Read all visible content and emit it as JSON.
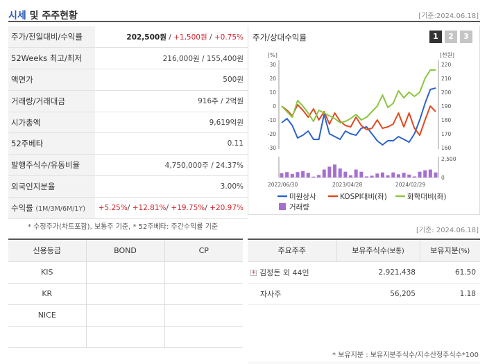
{
  "header": {
    "title_accent": "시세",
    "title_rest": " 및 주주현황",
    "ref_date": "[기준:2024.06.18]"
  },
  "info": {
    "price": {
      "label": "주가/전일대비/수익률",
      "value": "202,500원",
      "change": "+1,500원",
      "rate": "+0.75%"
    },
    "week52": {
      "label": "52Weeks 최고/최저",
      "value": "216,000원 / 155,400원"
    },
    "par": {
      "label": "액면가",
      "value": "500원"
    },
    "volume": {
      "label": "거래량/거래대금",
      "value": "916주 / 2억원"
    },
    "mcap": {
      "label": "시가총액",
      "value": "9,619억원"
    },
    "beta": {
      "label": "52주베타",
      "value": "0.11"
    },
    "shares": {
      "label": "발행주식수/유동비율",
      "value": "4,750,000주 / 24.37%"
    },
    "foreign": {
      "label": "외국인지분율",
      "value": "3.00%"
    },
    "returns": {
      "label": "수익률",
      "label_sub": "(1M/3M/6M/1Y)",
      "r1": "+5.25%",
      "r2": "+12.81%",
      "r3": "+19.75%",
      "r4": "+20.97%"
    }
  },
  "chart_panel": {
    "title": "주가/상대수익률",
    "pages": [
      "1",
      "2",
      "3"
    ]
  },
  "chart_data": {
    "type": "line",
    "left_unit": "[%]",
    "right_unit": "[천원]",
    "y_left_ticks": [
      "30",
      "20",
      "10",
      "0",
      "-10",
      "-20",
      "-30"
    ],
    "y_right_ticks": [
      "220",
      "210",
      "200",
      "190",
      "180",
      "170",
      "160"
    ],
    "vol_ticks": [
      "2,500",
      "0"
    ],
    "x_tick_labels": [
      "2022/06/30",
      "2023/04/28",
      "2024/02/29"
    ],
    "ylim_left": [
      -30,
      30
    ],
    "ylim_right": [
      160,
      220
    ],
    "series": [
      {
        "name": "미원상사",
        "color": "#2b63c9",
        "values": [
          -12,
          -9,
          -14,
          -23,
          -21,
          -18,
          -24,
          -24,
          -6,
          -20,
          -22,
          -24,
          -18,
          -20,
          -21,
          -16,
          -15,
          -20,
          -25,
          -28,
          -25,
          -25,
          -22,
          -24,
          -26,
          -20,
          -10,
          2,
          12,
          13
        ]
      },
      {
        "name": "KOSPI대비(좌)",
        "color": "#e0491f",
        "values": [
          0,
          -3,
          -7,
          1,
          -3,
          -8,
          -2,
          -10,
          -4,
          -13,
          -5,
          -11,
          -14,
          -15,
          -8,
          -14,
          -17,
          -16,
          -10,
          -16,
          -15,
          -13,
          -5,
          -15,
          -5,
          -16,
          -21,
          -10,
          0,
          -4
        ]
      },
      {
        "name": "화학대비(좌)",
        "color": "#8bc53f",
        "values": [
          0,
          -4,
          -8,
          4,
          0,
          -5,
          -11,
          -3,
          -5,
          -7,
          -9,
          -12,
          -11,
          -9,
          -6,
          -10,
          -8,
          -4,
          0,
          8,
          -1,
          2,
          11,
          6,
          10,
          7,
          10,
          20,
          26,
          26
        ]
      }
    ],
    "volume": {
      "name": "거래량",
      "color": "#a56fd0",
      "max": 2500,
      "values": [
        600,
        750,
        500,
        750,
        900,
        650,
        120,
        350,
        1100,
        1500,
        1800,
        1250,
        800,
        300,
        1100,
        800,
        150,
        250,
        550,
        700,
        300,
        700,
        450,
        650,
        400,
        150,
        800,
        1000,
        1100,
        700
      ]
    }
  },
  "notes": {
    "left": "* 수정주가(차트포함), 보통주 기준, * 52주베타: 주간수익률 기준",
    "right": "[기준: 2024.06.18]",
    "bottom": "* 보유지분 : 보유지분주식수/지수산정주식수*100"
  },
  "rating": {
    "headers": [
      "신용등급",
      "BOND",
      "CP"
    ],
    "rows": [
      {
        "agency": "KIS",
        "bond": "",
        "cp": ""
      },
      {
        "agency": "KR",
        "bond": "",
        "cp": ""
      },
      {
        "agency": "NICE",
        "bond": "",
        "cp": ""
      },
      {
        "agency": "",
        "bond": "",
        "cp": ""
      }
    ]
  },
  "holders": {
    "header_name": "주요주주",
    "header_shares": "보유주식수",
    "header_shares_sub": "(보통)",
    "header_ratio": "보유지분",
    "header_ratio_sub": "(%)",
    "rows": [
      {
        "name": "김정돈 외 44인",
        "shares": "2,921,438",
        "ratio": "61.50",
        "expandable": true
      },
      {
        "name": "자사주",
        "shares": "56,205",
        "ratio": "1.18",
        "expandable": false
      }
    ]
  }
}
